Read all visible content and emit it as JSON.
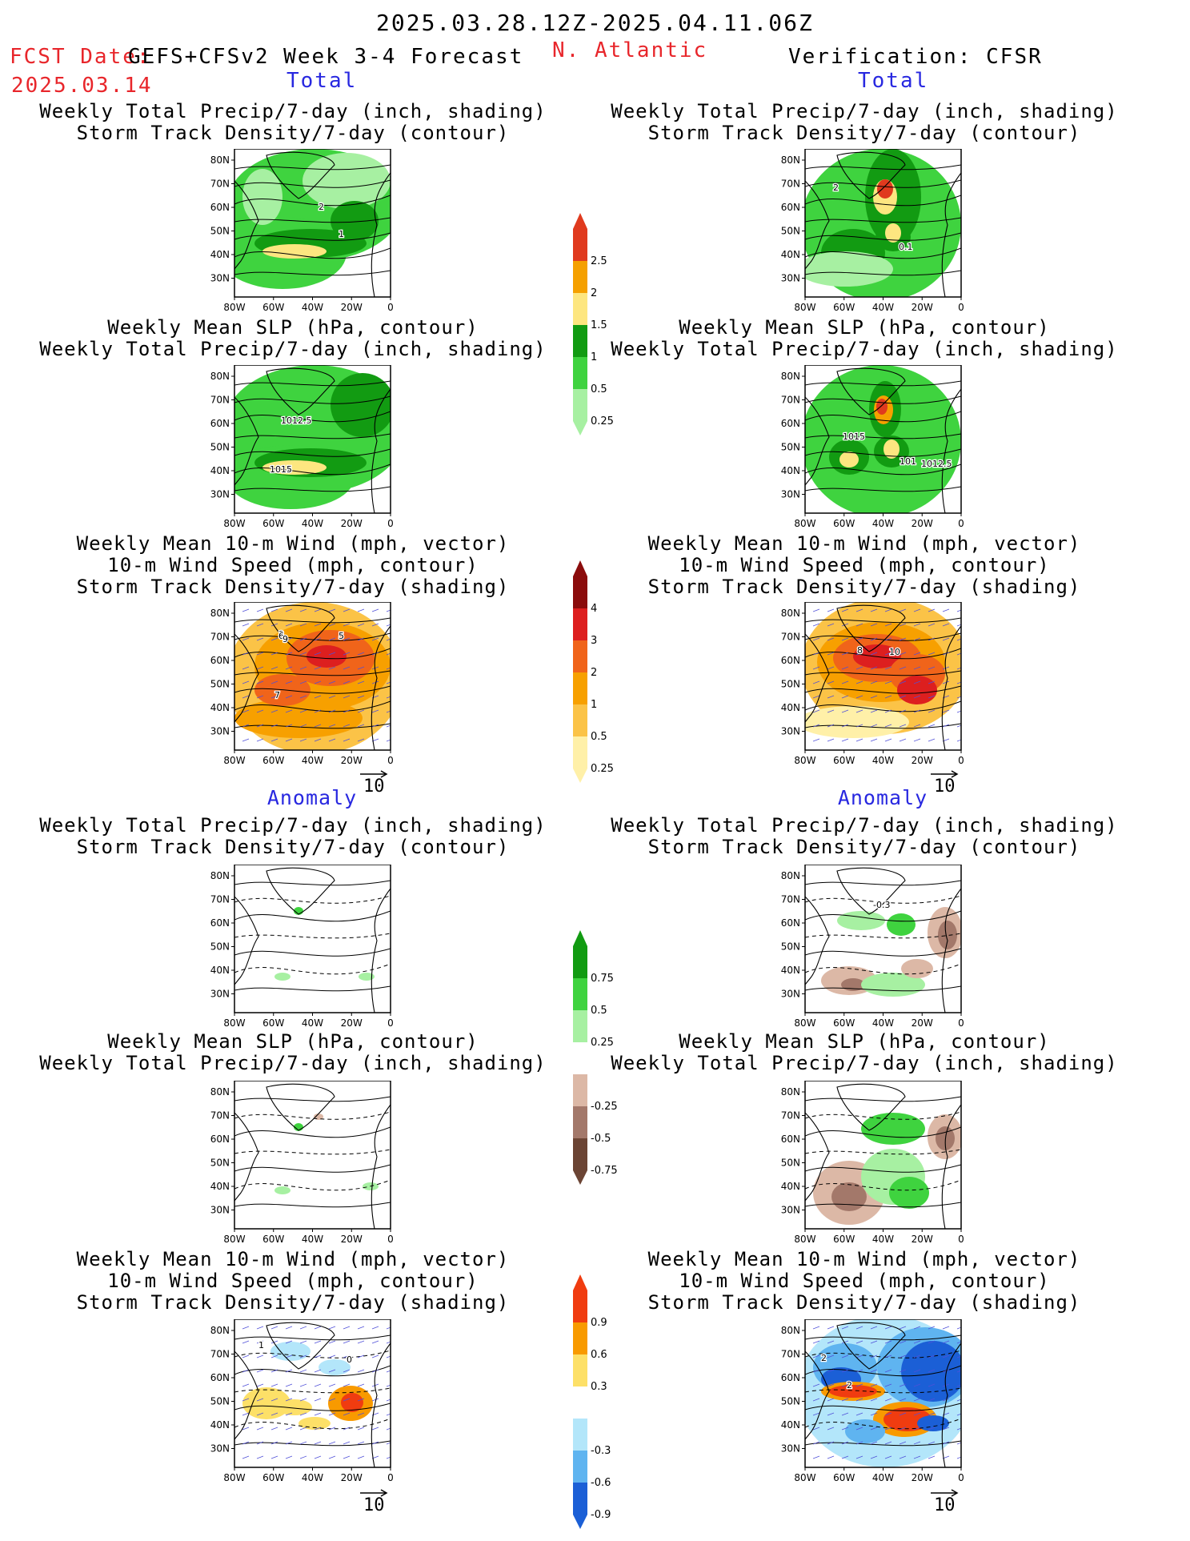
{
  "header": {
    "period": "2025.03.28.12Z-2025.04.11.06Z",
    "fcst_date_label": "FCST Date:",
    "fcst_date": "2025.03.14",
    "model": "GEFS+CFSv2 Week 3-4 Forecast",
    "region": "N. Atlantic",
    "verification": "Verification: CFSR",
    "total_left": "Total",
    "total_right": "Total",
    "anomaly_left": "Anomaly",
    "anomaly_right": "Anomaly"
  },
  "titles": {
    "precip_storm": [
      "Weekly Total Precip/7-day (inch, shading)",
      "Storm Track Density/7-day (contour)"
    ],
    "slp_precip": [
      "Weekly Mean SLP (hPa, contour)",
      "Weekly Total Precip/7-day (inch, shading)"
    ],
    "wind_storm": [
      "Weekly Mean 10-m Wind (mph, vector)",
      "10-m Wind Speed (mph, contour)",
      "Storm Track Density/7-day (shading)"
    ]
  },
  "axes": {
    "lat_labels": [
      "80N",
      "70N",
      "60N",
      "50N",
      "40N",
      "30N"
    ],
    "lon_labels": [
      "80W",
      "60W",
      "40W",
      "20W",
      "0"
    ]
  },
  "vector_ref": "10",
  "colorbars": [
    {
      "id": "precip_total",
      "labels": [
        "2.5",
        "2",
        "1.5",
        "1",
        "0.5",
        "0.25"
      ],
      "colors": [
        "#e03a1e",
        "#f5a000",
        "#fde680",
        "#129b12",
        "#3fd33f",
        "#a7f0a2"
      ]
    },
    {
      "id": "storm_total",
      "labels": [
        "4",
        "3",
        "2",
        "1",
        "0.5",
        "0.25"
      ],
      "colors": [
        "#8b0c0c",
        "#dd1f1f",
        "#f0641a",
        "#f7a000",
        "#fbc347",
        "#fff0a8"
      ]
    },
    {
      "id": "precip_anom",
      "labels": [
        "0.75",
        "0.5",
        "0.25",
        "-0.25",
        "-0.5",
        "-0.75"
      ],
      "colors": [
        "#129b12",
        "#3fd33f",
        "#a7f0a2",
        "#ffffff",
        "#dcb8a6",
        "#a3786a",
        "#6b4434"
      ]
    },
    {
      "id": "storm_anom",
      "labels": [
        "0.9",
        "0.6",
        "0.3",
        "-0.3",
        "-0.6",
        "-0.9"
      ],
      "colors": [
        "#f03c10",
        "#f89a00",
        "#fde068",
        "#ffffff",
        "#b3e6fa",
        "#5fb4f0",
        "#1b5fd6"
      ]
    }
  ],
  "panels": [
    {
      "id": "p1",
      "contour_labels": [
        "2",
        "1"
      ]
    },
    {
      "id": "p2",
      "contour_labels": [
        "2",
        "0.1"
      ]
    },
    {
      "id": "p3",
      "contour_labels": [
        "1012.5",
        "1015"
      ]
    },
    {
      "id": "p4",
      "contour_labels": [
        "1015",
        "101",
        "1012.5"
      ]
    },
    {
      "id": "p5",
      "contour_labels": [
        "3",
        "6",
        "9",
        "5",
        "7"
      ]
    },
    {
      "id": "p6",
      "contour_labels": [
        "8",
        "10"
      ]
    },
    {
      "id": "p7",
      "contour_labels": []
    },
    {
      "id": "p8",
      "contour_labels": [
        "-0.3"
      ]
    },
    {
      "id": "p9",
      "contour_labels": []
    },
    {
      "id": "p10",
      "contour_labels": []
    },
    {
      "id": "p11",
      "contour_labels": [
        "1",
        "0"
      ]
    },
    {
      "id": "p12",
      "contour_labels": [
        "2",
        "2"
      ]
    }
  ],
  "colors": {
    "header_red": "#e8262b",
    "label_blue": "#2828e0"
  }
}
